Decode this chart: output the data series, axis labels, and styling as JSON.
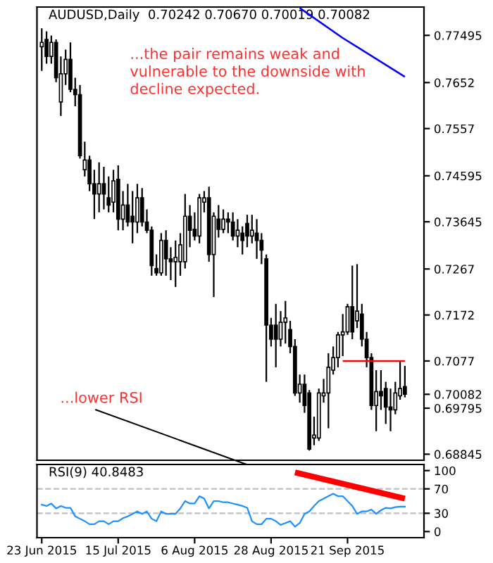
{
  "chart_data": [
    {
      "type": "candlestick",
      "title": "AUDUSD,Daily  0.70242 0.70670 0.70019 0.70082",
      "categories": [
        null,
        null,
        null,
        null,
        null,
        null,
        null,
        null,
        null,
        null,
        null,
        null,
        null,
        null,
        null,
        null,
        null,
        null,
        null,
        null,
        null,
        null,
        null,
        null,
        null,
        null,
        null,
        null,
        null,
        null,
        null,
        null,
        null,
        null,
        null,
        null,
        null,
        null,
        null,
        null,
        null,
        null,
        null,
        null,
        null,
        null,
        null,
        null,
        null,
        null,
        null,
        null,
        null,
        null,
        null,
        null,
        null,
        null,
        null,
        null,
        null,
        null,
        null,
        null,
        null,
        null,
        null,
        null,
        null,
        null,
        null,
        null,
        null,
        null,
        null,
        null,
        null
      ],
      "ohlc": [
        [
          0.7726,
          0.7764,
          0.7676,
          0.7735
        ],
        [
          0.7741,
          0.7758,
          0.7691,
          0.7706
        ],
        [
          0.7706,
          0.7749,
          0.7691,
          0.7735
        ],
        [
          0.7735,
          0.7741,
          0.7653,
          0.7662
        ],
        [
          0.7612,
          0.7706,
          0.7583,
          0.767
        ],
        [
          0.767,
          0.772,
          0.7647,
          0.77
        ],
        [
          0.77,
          0.7735,
          0.7632,
          0.7638
        ],
        [
          0.7638,
          0.7662,
          0.7603,
          0.7627
        ],
        [
          0.7627,
          0.7647,
          0.7495,
          0.7501
        ],
        [
          0.7472,
          0.753,
          0.7458,
          0.7492
        ],
        [
          0.7492,
          0.7501,
          0.7428,
          0.7443
        ],
        [
          0.7443,
          0.7472,
          0.737,
          0.7422
        ],
        [
          0.7422,
          0.7487,
          0.7384,
          0.7443
        ],
        [
          0.7443,
          0.7478,
          0.739,
          0.7422
        ],
        [
          0.7414,
          0.7458,
          0.7384,
          0.7399
        ],
        [
          0.7405,
          0.7472,
          0.7384,
          0.7449
        ],
        [
          0.7452,
          0.7481,
          0.7347,
          0.737
        ],
        [
          0.737,
          0.7428,
          0.7347,
          0.7399
        ],
        [
          0.7399,
          0.7443,
          0.7355,
          0.7364
        ],
        [
          0.7376,
          0.7428,
          0.732,
          0.7364
        ],
        [
          0.7364,
          0.7443,
          0.7341,
          0.7414
        ],
        [
          0.7414,
          0.7434,
          0.7355,
          0.7364
        ],
        [
          0.7364,
          0.739,
          0.7341,
          0.7347
        ],
        [
          0.7347,
          0.7355,
          0.7253,
          0.7274
        ],
        [
          0.7268,
          0.7297,
          0.7253,
          0.7259
        ],
        [
          0.7259,
          0.7341,
          0.7253,
          0.7326
        ],
        [
          0.7326,
          0.7347,
          0.7253,
          0.7288
        ],
        [
          0.7288,
          0.7312,
          0.7244,
          0.7282
        ],
        [
          0.7282,
          0.7326,
          0.723,
          0.7291
        ],
        [
          0.7282,
          0.7341,
          0.7253,
          0.7317
        ],
        [
          0.7282,
          0.7422,
          0.7268,
          0.7376
        ],
        [
          0.7376,
          0.7399,
          0.7312,
          0.7347
        ],
        [
          0.7349,
          0.7384,
          0.7326,
          0.7335
        ],
        [
          0.7335,
          0.7422,
          0.732,
          0.7414
        ],
        [
          0.7405,
          0.7428,
          0.7384,
          0.7414
        ],
        [
          0.7414,
          0.7437,
          0.7282,
          0.7297
        ],
        [
          0.7297,
          0.7384,
          0.7209,
          0.7376
        ],
        [
          0.737,
          0.7399,
          0.7332,
          0.7349
        ],
        [
          0.7349,
          0.739,
          0.7341,
          0.737
        ],
        [
          0.737,
          0.7384,
          0.7341,
          0.7364
        ],
        [
          0.7364,
          0.7384,
          0.7326,
          0.7335
        ],
        [
          0.7335,
          0.737,
          0.7312,
          0.7347
        ],
        [
          0.7341,
          0.7355,
          0.7297,
          0.7326
        ],
        [
          0.7361,
          0.7379,
          0.7312,
          0.7335
        ],
        [
          0.7335,
          0.7379,
          0.732,
          0.7347
        ],
        [
          0.7341,
          0.737,
          0.7288,
          0.7326
        ],
        [
          0.7326,
          0.7341,
          0.7277,
          0.7306
        ],
        [
          0.7288,
          0.7297,
          0.7034,
          0.7151
        ],
        [
          0.7151,
          0.7166,
          0.7107,
          0.7122
        ],
        [
          0.7151,
          0.7195,
          0.7064,
          0.7122
        ],
        [
          0.7122,
          0.718,
          0.7107,
          0.7157
        ],
        [
          0.7157,
          0.7201,
          0.7113,
          0.7166
        ],
        [
          0.7142,
          0.716,
          0.7093,
          0.7107
        ],
        [
          0.7107,
          0.7122,
          0.7005,
          0.7011
        ],
        [
          0.7011,
          0.7049,
          0.6991,
          0.7029
        ],
        [
          0.7029,
          0.7049,
          0.697,
          0.6985
        ],
        [
          0.7011,
          0.7017,
          0.6892,
          0.6895
        ],
        [
          0.6918,
          0.6962,
          0.6903,
          0.6924
        ],
        [
          0.6918,
          0.702,
          0.6912,
          0.7011
        ],
        [
          0.7005,
          0.704,
          0.6991,
          0.7011
        ],
        [
          0.7011,
          0.7093,
          0.6938,
          0.7064
        ],
        [
          0.7058,
          0.7107,
          0.7049,
          0.7084
        ],
        [
          0.7084,
          0.7137,
          0.7064,
          0.7131
        ],
        [
          0.7131,
          0.7174,
          0.7087,
          0.7137
        ],
        [
          0.7137,
          0.7195,
          0.7131,
          0.7189
        ],
        [
          0.7189,
          0.7274,
          0.7122,
          0.7137
        ],
        [
          0.716,
          0.7277,
          0.7145,
          0.718
        ],
        [
          0.7174,
          0.7195,
          0.7107,
          0.7122
        ],
        [
          0.7122,
          0.7137,
          0.7064,
          0.7084
        ],
        [
          0.7084,
          0.7093,
          0.6976,
          0.6985
        ],
        [
          0.6985,
          0.7058,
          0.6932,
          0.7014
        ],
        [
          0.7014,
          0.7058,
          0.6976,
          0.7005
        ],
        [
          0.702,
          0.7034,
          0.6947,
          0.6982
        ],
        [
          0.6982,
          0.702,
          0.6932,
          0.6976
        ],
        [
          0.6976,
          0.7034,
          0.6967,
          0.7011
        ],
        [
          0.7005,
          0.7078,
          0.6997,
          0.702
        ],
        [
          0.70242,
          0.7067,
          0.70019,
          0.70082
        ]
      ],
      "series": [
        {
          "type": "line",
          "color": "#0000ff",
          "values": [
            null,
            null,
            null,
            null,
            null,
            null,
            null,
            null,
            null,
            null,
            null,
            null,
            null,
            null,
            null,
            null,
            null,
            null,
            null,
            null,
            null,
            null,
            null,
            null,
            null,
            null,
            null,
            null,
            null,
            null,
            null,
            null,
            null,
            null,
            null,
            null,
            null,
            null,
            null,
            null,
            null,
            null,
            null,
            null,
            null,
            null,
            null,
            null,
            null,
            null,
            null,
            null,
            null,
            null,
            0.7806,
            null,
            null,
            null,
            null,
            null,
            null,
            null,
            null,
            0.7744,
            null,
            null,
            null,
            null,
            null,
            null,
            null,
            null,
            null,
            null,
            null,
            null,
            0.7664
          ]
        },
        {
          "type": "line",
          "color": "#ff0000",
          "values": [
            null,
            null,
            null,
            null,
            null,
            null,
            null,
            null,
            null,
            null,
            null,
            null,
            null,
            null,
            null,
            null,
            null,
            null,
            null,
            null,
            null,
            null,
            null,
            null,
            null,
            null,
            null,
            null,
            null,
            null,
            null,
            null,
            null,
            null,
            null,
            null,
            null,
            null,
            null,
            null,
            null,
            null,
            null,
            null,
            null,
            null,
            null,
            null,
            null,
            null,
            null,
            null,
            null,
            null,
            null,
            null,
            null,
            null,
            null,
            null,
            null,
            null,
            null,
            0.7077,
            null,
            null,
            null,
            null,
            null,
            null,
            null,
            null,
            null,
            null,
            null,
            null,
            0.7077
          ]
        }
      ],
      "ylim": [
        0.6872,
        0.7808
      ],
      "yticks": [
        0.77495,
        0.7652,
        0.7557,
        0.74595,
        0.73645,
        0.7267,
        0.7172,
        0.7077,
        0.69795,
        0.68845,
        {
          "value": 0.70082,
          "label": "0.70082"
        }
      ],
      "annotations": [
        "...the pair remains weak and vulnerable to the downside with decline expected.",
        "...lower RSI"
      ]
    },
    {
      "type": "line",
      "title": "RSI(9) 40.8483",
      "categories": [
        "23 Jun 2015",
        null,
        null,
        null,
        null,
        null,
        null,
        null,
        null,
        null,
        null,
        null,
        null,
        null,
        null,
        null,
        "15 Jul 2015",
        null,
        null,
        null,
        null,
        null,
        null,
        null,
        null,
        null,
        null,
        null,
        null,
        null,
        null,
        null,
        "6 Aug 2015",
        null,
        null,
        null,
        null,
        null,
        null,
        null,
        null,
        null,
        null,
        null,
        null,
        null,
        null,
        null,
        "28 Aug 2015",
        null,
        null,
        null,
        null,
        null,
        null,
        null,
        null,
        null,
        null,
        null,
        null,
        null,
        null,
        null,
        "21 Sep 2015",
        null,
        null,
        null,
        null,
        null,
        null,
        null,
        null,
        null,
        null,
        null,
        null
      ],
      "series": [
        {
          "color": "#1e90ff",
          "values": [
            44,
            42,
            46,
            38,
            42,
            39,
            39,
            25,
            21,
            17,
            12,
            12,
            17,
            17,
            12,
            17,
            17,
            22,
            25,
            29,
            33,
            29,
            33,
            21,
            17,
            33,
            29,
            29,
            29,
            38,
            50,
            46,
            46,
            58,
            54,
            38,
            50,
            50,
            48,
            48,
            46,
            44,
            42,
            39,
            17,
            12,
            12,
            21,
            21,
            17,
            11,
            14,
            17,
            8,
            14,
            29,
            33,
            42,
            50,
            54,
            58,
            62,
            58,
            58,
            50,
            42,
            29,
            33,
            33,
            36,
            29,
            35,
            39,
            38,
            40,
            41,
            41
          ]
        },
        {
          "type": "line",
          "color": "#ff0000",
          "values": [
            null,
            null,
            null,
            null,
            null,
            null,
            null,
            null,
            null,
            null,
            null,
            null,
            null,
            null,
            null,
            null,
            null,
            null,
            null,
            null,
            null,
            null,
            null,
            null,
            null,
            null,
            null,
            null,
            null,
            null,
            null,
            null,
            null,
            null,
            null,
            null,
            null,
            null,
            null,
            null,
            null,
            null,
            null,
            null,
            null,
            null,
            null,
            null,
            null,
            null,
            null,
            null,
            null,
            97,
            null,
            null,
            null,
            null,
            null,
            null,
            null,
            null,
            null,
            null,
            null,
            null,
            null,
            null,
            null,
            null,
            null,
            null,
            null,
            null,
            null,
            null,
            54
          ]
        }
      ],
      "ylim": [
        -10,
        110
      ],
      "yticks": [
        0,
        30,
        70,
        100
      ],
      "ref_lines": [
        {
          "axis": "y",
          "value": 70,
          "color": "#c0c0c0",
          "line_style": "dashed"
        },
        {
          "axis": "y",
          "value": 30,
          "color": "#c0c0c0",
          "line_style": "dashed"
        }
      ]
    }
  ]
}
